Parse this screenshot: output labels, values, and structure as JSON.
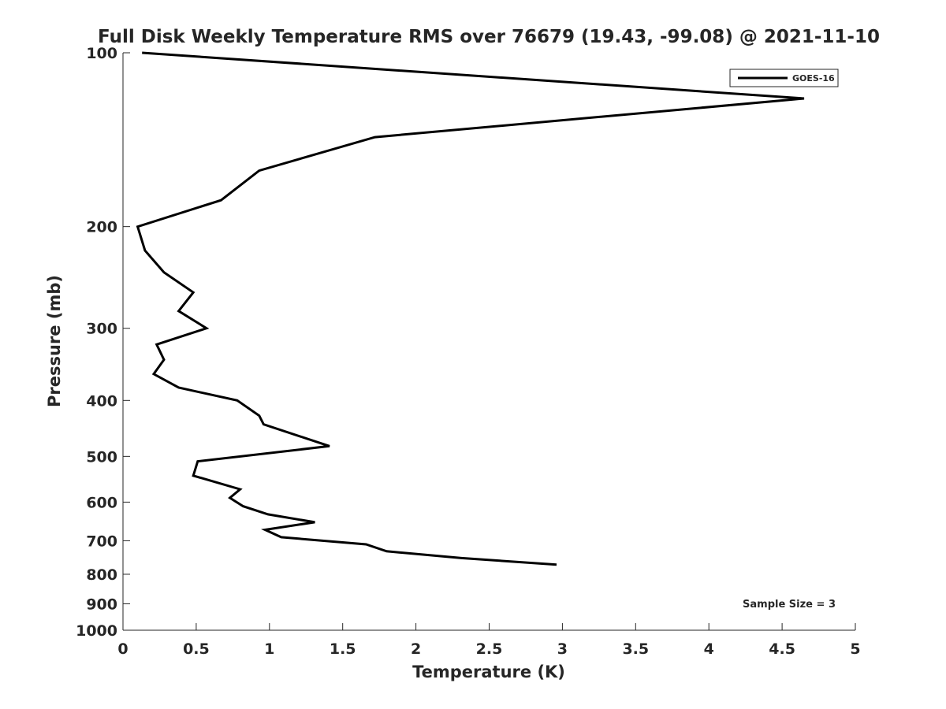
{
  "chart_data": {
    "type": "line",
    "title": "Full Disk Weekly Temperature RMS over 76679 (19.43, -99.08) @ 2021-11-10",
    "xlabel": "Temperature (K)",
    "ylabel": "Pressure (mb)",
    "xlim": [
      0,
      5
    ],
    "ylim": [
      100,
      1000
    ],
    "yscale": "log",
    "y_reversed": true,
    "grid": false,
    "xticks": [
      0,
      0.5,
      1,
      1.5,
      2,
      2.5,
      3,
      3.5,
      4,
      4.5,
      5
    ],
    "xtick_labels": [
      "0",
      "0.5",
      "1",
      "1.5",
      "2",
      "2.5",
      "3",
      "3.5",
      "4",
      "4.5",
      "5"
    ],
    "yticks": [
      100,
      200,
      300,
      400,
      500,
      600,
      700,
      800,
      900,
      1000
    ],
    "ytick_labels": [
      "100",
      "200",
      "300",
      "400",
      "500",
      "600",
      "700",
      "800",
      "900",
      "1000"
    ],
    "legend": {
      "position": "top-right",
      "entries": [
        "GOES-16"
      ]
    },
    "annotation": "Sample Size = 3",
    "series": [
      {
        "name": "GOES-16",
        "color": "#000000",
        "x": [
          0.13,
          4.65,
          1.72,
          0.93,
          0.67,
          0.1,
          0.15,
          0.28,
          0.48,
          0.38,
          0.57,
          0.23,
          0.28,
          0.21,
          0.38,
          0.78,
          0.93,
          0.96,
          1.41,
          0.51,
          0.48,
          0.8,
          0.73,
          0.82,
          0.99,
          1.31,
          0.97,
          1.08,
          1.66,
          1.8,
          2.31,
          2.96
        ],
        "y": [
          100,
          120,
          140,
          160,
          180,
          200,
          220,
          240,
          260,
          280,
          300,
          320,
          340,
          360,
          380,
          400,
          425,
          440,
          480,
          510,
          540,
          570,
          590,
          610,
          630,
          650,
          670,
          690,
          710,
          730,
          750,
          770
        ]
      }
    ]
  }
}
